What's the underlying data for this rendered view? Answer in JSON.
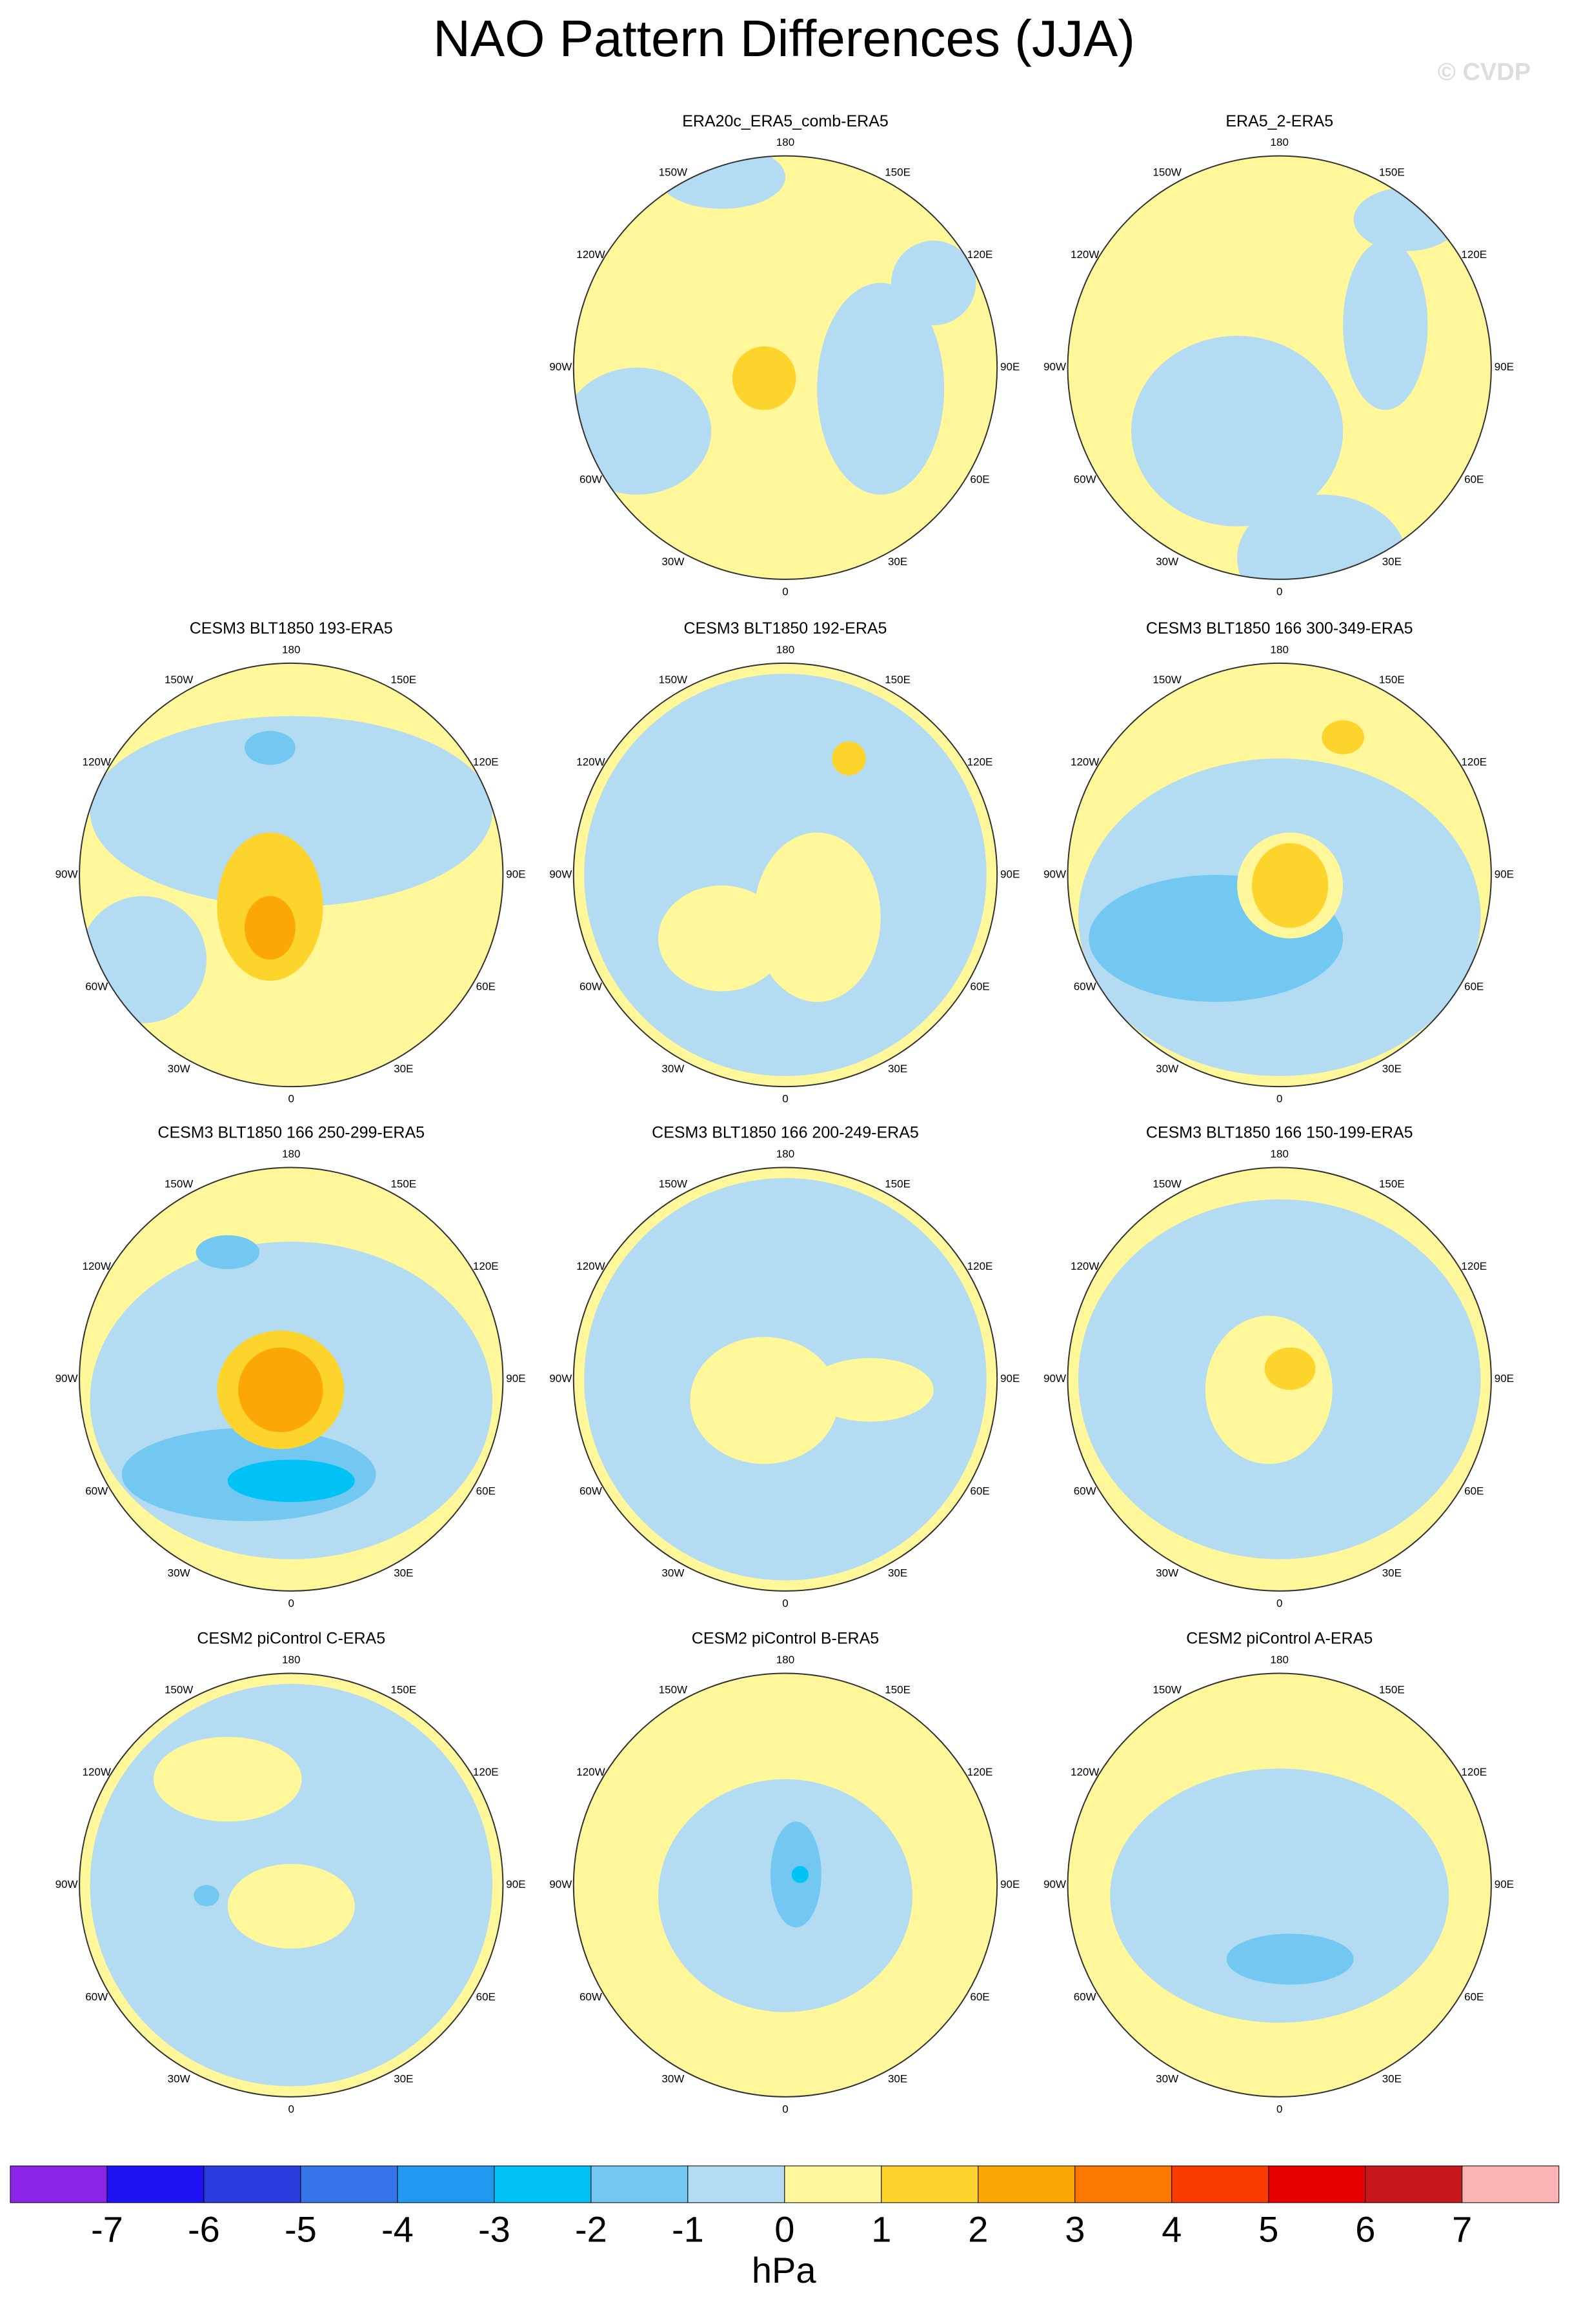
{
  "title": "NAO Pattern Differences (JJA)",
  "watermark": "© CVDP",
  "panels": [
    {
      "title": "ERA20c_ERA5_comb-ERA5"
    },
    {
      "title": "ERA5_2-ERA5"
    },
    {
      "title": "CESM3 BLT1850 193-ERA5"
    },
    {
      "title": "CESM3 BLT1850 192-ERA5"
    },
    {
      "title": "CESM3 BLT1850 166 300-349-ERA5"
    },
    {
      "title": "CESM3 BLT1850 166 250-299-ERA5"
    },
    {
      "title": "CESM3 BLT1850 166 200-249-ERA5"
    },
    {
      "title": "CESM3 BLT1850 166 150-199-ERA5"
    },
    {
      "title": "CESM2 piControl C-ERA5"
    },
    {
      "title": "CESM2 piControl B-ERA5"
    },
    {
      "title": "CESM2 piControl A-ERA5"
    }
  ],
  "lon_labels": [
    "180",
    "150E",
    "120E",
    "90E",
    "60E",
    "30E",
    "0",
    "30W",
    "60W",
    "90W",
    "120W",
    "150W"
  ],
  "colorbar": {
    "colors": [
      "#8c24e8",
      "#1f12f5",
      "#2a3ee0",
      "#3776ea",
      "#1f9af0",
      "#00c2f5",
      "#72c8f0",
      "#b3dcf2",
      "#fff799",
      "#fdd42c",
      "#fca705",
      "#fc7800",
      "#fa3c00",
      "#e80000",
      "#c8181e",
      "#fbb3b3"
    ],
    "ticks": [
      -7,
      -6,
      -5,
      -4,
      -3,
      -2,
      -1,
      0,
      1,
      2,
      3,
      4,
      5,
      6,
      7
    ],
    "unit": "hPa"
  }
}
